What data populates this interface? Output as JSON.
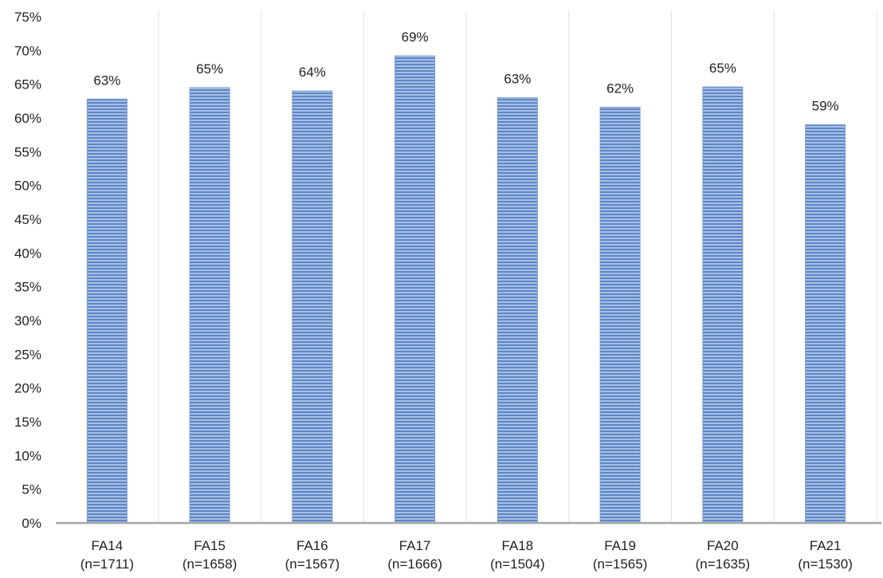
{
  "chart_data": {
    "type": "bar",
    "categories": [
      [
        "FA14",
        "(n=1711)"
      ],
      [
        "FA15",
        "(n=1658)"
      ],
      [
        "FA16",
        "(n=1567)"
      ],
      [
        "FA17",
        "(n=1666)"
      ],
      [
        "FA18",
        "(n=1504)"
      ],
      [
        "FA19",
        "(n=1565)"
      ],
      [
        "FA20",
        "(n=1635)"
      ],
      [
        "FA21",
        "(n=1530)"
      ]
    ],
    "values": [
      62.8,
      64.5,
      64,
      69.2,
      63,
      61.6,
      64.6,
      59
    ],
    "data_labels": [
      "63%",
      "65%",
      "64%",
      "69%",
      "63%",
      "62%",
      "65%",
      "59%"
    ],
    "title": "",
    "xlabel": "",
    "ylabel": "",
    "ylim": [
      0,
      75
    ],
    "ytick_step": 5,
    "ytick_labels": [
      "0%",
      "5%",
      "10%",
      "15%",
      "20%",
      "25%",
      "30%",
      "35%",
      "40%",
      "45%",
      "50%",
      "55%",
      "60%",
      "65%",
      "70%",
      "75%"
    ],
    "grid": false,
    "category_separators": true,
    "legend": "none",
    "colors": {
      "bar": "#8eaadb",
      "bar_stripe": "#5b87c6",
      "bar_edge": "#7a9bd0",
      "axis": "#a6a6a6",
      "separator": "#e4e4e4",
      "text": "#222222"
    }
  }
}
